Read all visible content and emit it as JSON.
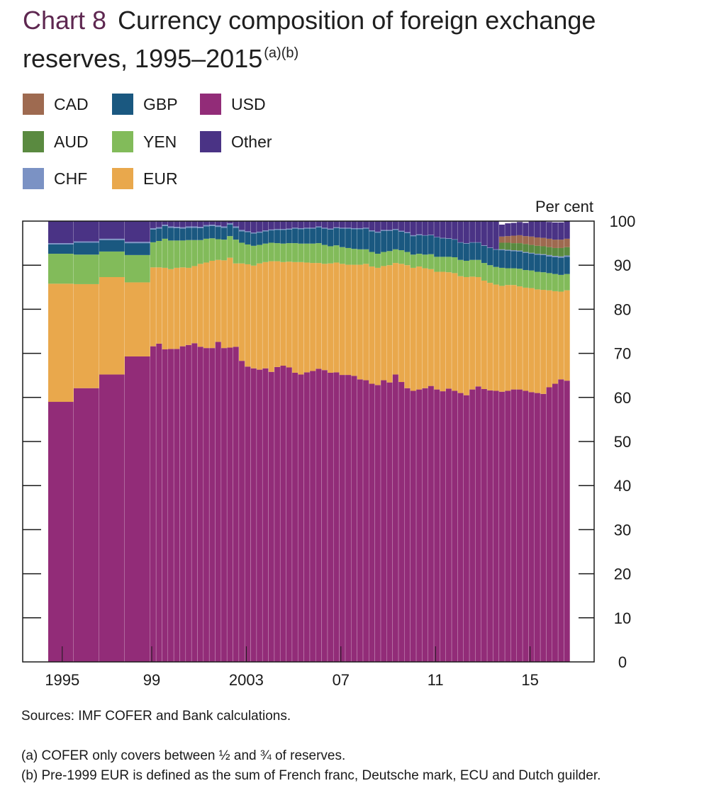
{
  "title": {
    "chart_number": "Chart 8",
    "line1": "Currency composition of foreign exchange",
    "line2": "reserves, 1995–2015",
    "superscript": "(a)(b)"
  },
  "unit_label": "Per cent",
  "source": "Sources:  IMF COFER and Bank calculations.",
  "notes": [
    "(a)  COFER only covers between ½ and ¾ of reserves.",
    "(b)  Pre-1999 EUR is defined as the sum of French franc, Deutsche mark, ECU and Dutch guilder."
  ],
  "legend": [
    {
      "key": "CAD",
      "label": "CAD"
    },
    {
      "key": "GBP",
      "label": "GBP"
    },
    {
      "key": "USD",
      "label": "USD"
    },
    {
      "key": "AUD",
      "label": "AUD"
    },
    {
      "key": "YEN",
      "label": "YEN"
    },
    {
      "key": "Other",
      "label": "Other"
    },
    {
      "key": "CHF",
      "label": "CHF"
    },
    {
      "key": "EUR",
      "label": "EUR"
    }
  ],
  "colors": {
    "USD": "#922c78",
    "EUR": "#e9a84c",
    "YEN": "#82bb5a",
    "GBP": "#1a5880",
    "CHF": "#7b92c4",
    "AUD": "#5a8a40",
    "CAD": "#9e6a50",
    "Other": "#4a3385"
  },
  "chart_data": {
    "type": "bar",
    "stacked": true,
    "yaxis": {
      "range": [
        0,
        100
      ],
      "ticks": [
        0,
        10,
        20,
        30,
        40,
        50,
        60,
        70,
        80,
        90,
        100
      ],
      "side": "right",
      "label": "Per cent"
    },
    "xaxis": {
      "tick_labels": [
        "1995",
        "99",
        "2003",
        "07",
        "11",
        "15"
      ]
    },
    "legend_position": "top-left",
    "grid": false,
    "stack_order": [
      "USD",
      "EUR",
      "YEN",
      "GBP",
      "CHF",
      "AUD",
      "CAD",
      "Other"
    ],
    "annual_periods": [
      "1995",
      "1996",
      "1997",
      "1998"
    ],
    "quarterly_start": "1999 Q1",
    "quarterly_end": "2015 Q2",
    "series": [
      {
        "name": "USD",
        "values": [
          59.0,
          62.1,
          65.2,
          69.3,
          71.6,
          72.2,
          70.9,
          71.0,
          71.0,
          71.6,
          71.9,
          72.3,
          71.5,
          71.2,
          71.2,
          72.6,
          71.2,
          71.3,
          71.5,
          68.3,
          67.0,
          66.6,
          66.3,
          66.6,
          65.8,
          66.9,
          67.2,
          66.8,
          65.6,
          65.2,
          65.7,
          66.0,
          66.5,
          66.2,
          65.6,
          65.7,
          65.1,
          65.1,
          64.9,
          64.1,
          63.9,
          63.1,
          62.8,
          63.9,
          63.4,
          65.2,
          63.5,
          62.1,
          61.5,
          61.8,
          62.1,
          62.6,
          61.8,
          61.4,
          62.0,
          61.5,
          61.0,
          60.5,
          61.8,
          62.5,
          61.9,
          61.6,
          61.5,
          61.3,
          61.5,
          61.8,
          61.8,
          61.5,
          61.2,
          61.0,
          60.8,
          62.3,
          63.1,
          64.1,
          63.8
        ]
      },
      {
        "name": "EUR",
        "values": [
          26.8,
          23.6,
          22.1,
          16.8,
          17.9,
          17.3,
          18.5,
          18.1,
          18.4,
          17.9,
          17.5,
          17.5,
          18.8,
          19.4,
          19.8,
          18.6,
          19.9,
          20.4,
          18.9,
          22.1,
          23.2,
          23.3,
          24.1,
          24.1,
          25.1,
          24.0,
          23.5,
          24.0,
          25.1,
          25.5,
          24.9,
          24.5,
          24.0,
          24.1,
          24.8,
          24.9,
          25.2,
          25.0,
          25.2,
          26.0,
          26.4,
          26.6,
          26.6,
          25.9,
          26.6,
          25.3,
          26.8,
          27.9,
          27.9,
          27.9,
          27.2,
          26.5,
          26.7,
          27.1,
          26.4,
          26.7,
          26.5,
          26.8,
          25.6,
          24.8,
          24.6,
          24.4,
          24.1,
          24.0,
          24.0,
          23.7,
          23.4,
          23.4,
          23.6,
          23.5,
          23.6,
          22.0,
          21.0,
          19.9,
          20.5
        ]
      },
      {
        "name": "YEN",
        "values": [
          6.8,
          6.7,
          5.8,
          6.2,
          5.7,
          6.0,
          6.6,
          6.5,
          6.2,
          6.1,
          6.3,
          5.9,
          5.4,
          5.4,
          5.1,
          4.7,
          4.7,
          4.9,
          5.4,
          4.7,
          4.5,
          4.5,
          4.2,
          4.2,
          4.2,
          4.1,
          4.2,
          4.2,
          4.3,
          4.2,
          4.3,
          4.4,
          4.5,
          4.3,
          3.9,
          3.9,
          3.8,
          3.8,
          3.6,
          3.5,
          3.3,
          3.3,
          3.2,
          3.2,
          3.2,
          3.1,
          3.1,
          3.0,
          3.0,
          2.9,
          3.1,
          3.4,
          3.4,
          3.4,
          3.5,
          3.6,
          3.7,
          3.7,
          3.8,
          3.9,
          4.0,
          4.0,
          4.0,
          4.1,
          3.8,
          3.8,
          4.0,
          4.0,
          4.0,
          4.0,
          4.0,
          3.9,
          3.9,
          3.8,
          3.7
        ]
      },
      {
        "name": "GBP",
        "values": [
          2.1,
          2.7,
          2.6,
          2.7,
          2.9,
          2.8,
          2.9,
          2.9,
          2.8,
          2.7,
          2.8,
          2.8,
          2.7,
          2.8,
          2.8,
          2.8,
          2.7,
          2.6,
          2.7,
          2.6,
          2.8,
          2.8,
          2.8,
          2.8,
          2.8,
          3.0,
          3.1,
          3.1,
          3.3,
          3.3,
          3.4,
          3.4,
          3.6,
          3.7,
          3.8,
          3.9,
          4.2,
          4.4,
          4.5,
          4.6,
          4.7,
          4.7,
          4.8,
          4.8,
          4.6,
          4.4,
          4.2,
          4.3,
          4.2,
          4.2,
          4.3,
          4.3,
          4.4,
          4.2,
          4.1,
          4.0,
          3.9,
          3.9,
          3.9,
          3.9,
          3.9,
          3.9,
          3.9,
          4.0,
          4.0,
          3.9,
          3.9,
          3.9,
          3.8,
          3.9,
          3.9,
          3.8,
          3.8,
          3.9,
          3.9
        ]
      },
      {
        "name": "CHF",
        "values": [
          0.3,
          0.3,
          0.3,
          0.3,
          0.3,
          0.3,
          0.3,
          0.3,
          0.3,
          0.3,
          0.3,
          0.3,
          0.3,
          0.3,
          0.3,
          0.3,
          0.3,
          0.3,
          0.3,
          0.3,
          0.2,
          0.2,
          0.2,
          0.2,
          0.2,
          0.2,
          0.2,
          0.2,
          0.2,
          0.2,
          0.2,
          0.2,
          0.2,
          0.2,
          0.2,
          0.2,
          0.2,
          0.2,
          0.2,
          0.2,
          0.2,
          0.2,
          0.2,
          0.2,
          0.2,
          0.2,
          0.2,
          0.2,
          0.2,
          0.2,
          0.1,
          0.1,
          0.1,
          0.1,
          0.1,
          0.1,
          0.1,
          0.1,
          0.1,
          0.1,
          0.1,
          0.1,
          0.1,
          0.2,
          0.2,
          0.2,
          0.2,
          0.2,
          0.2,
          0.2,
          0.2,
          0.3,
          0.3,
          0.3,
          0.3
        ]
      },
      {
        "name": "AUD",
        "values": [
          0,
          0,
          0,
          0,
          0,
          0,
          0,
          0,
          0,
          0,
          0,
          0,
          0,
          0,
          0,
          0,
          0,
          0,
          0,
          0,
          0,
          0,
          0,
          0,
          0,
          0,
          0,
          0,
          0,
          0,
          0,
          0,
          0,
          0,
          0,
          0,
          0,
          0,
          0,
          0,
          0,
          0,
          0,
          0,
          0,
          0,
          0,
          0,
          0,
          0,
          0,
          0,
          0,
          0,
          0,
          0,
          0,
          0,
          0,
          0,
          0,
          0,
          0,
          1.5,
          1.6,
          1.6,
          1.7,
          1.8,
          1.8,
          1.8,
          1.8,
          1.8,
          1.8,
          1.9,
          1.9
        ]
      },
      {
        "name": "CAD",
        "values": [
          0,
          0,
          0,
          0,
          0,
          0,
          0,
          0,
          0,
          0,
          0,
          0,
          0,
          0,
          0,
          0,
          0,
          0,
          0,
          0,
          0,
          0,
          0,
          0,
          0,
          0,
          0,
          0,
          0,
          0,
          0,
          0,
          0,
          0,
          0,
          0,
          0,
          0,
          0,
          0,
          0,
          0,
          0,
          0,
          0,
          0,
          0,
          0,
          0,
          0,
          0,
          0,
          0,
          0,
          0,
          0,
          0,
          0,
          0,
          0,
          0,
          0,
          0,
          1.4,
          1.5,
          1.7,
          1.8,
          1.8,
          1.9,
          1.9,
          1.9,
          1.9,
          1.9,
          1.9,
          1.9
        ]
      },
      {
        "name": "Other",
        "values": [
          5.0,
          4.6,
          4.0,
          4.7,
          1.6,
          1.4,
          0.8,
          1.2,
          1.3,
          1.4,
          1.2,
          1.2,
          1.3,
          0.9,
          0.8,
          1.0,
          1.2,
          0.5,
          1.2,
          2.0,
          2.3,
          2.6,
          2.4,
          2.1,
          1.9,
          1.8,
          1.8,
          1.7,
          1.5,
          1.6,
          1.5,
          1.5,
          1.2,
          1.5,
          1.7,
          1.4,
          1.5,
          1.5,
          1.6,
          1.6,
          1.5,
          2.1,
          2.4,
          2.0,
          2.0,
          1.8,
          2.2,
          2.5,
          3.2,
          3.0,
          3.2,
          3.1,
          3.6,
          3.8,
          3.9,
          4.1,
          4.8,
          5.0,
          4.8,
          4.8,
          5.5,
          6.0,
          6.4,
          2.7,
          2.9,
          2.9,
          3.0,
          3.0,
          3.4,
          3.7,
          3.8,
          3.8,
          3.9,
          3.9,
          4.0
        ]
      }
    ]
  }
}
